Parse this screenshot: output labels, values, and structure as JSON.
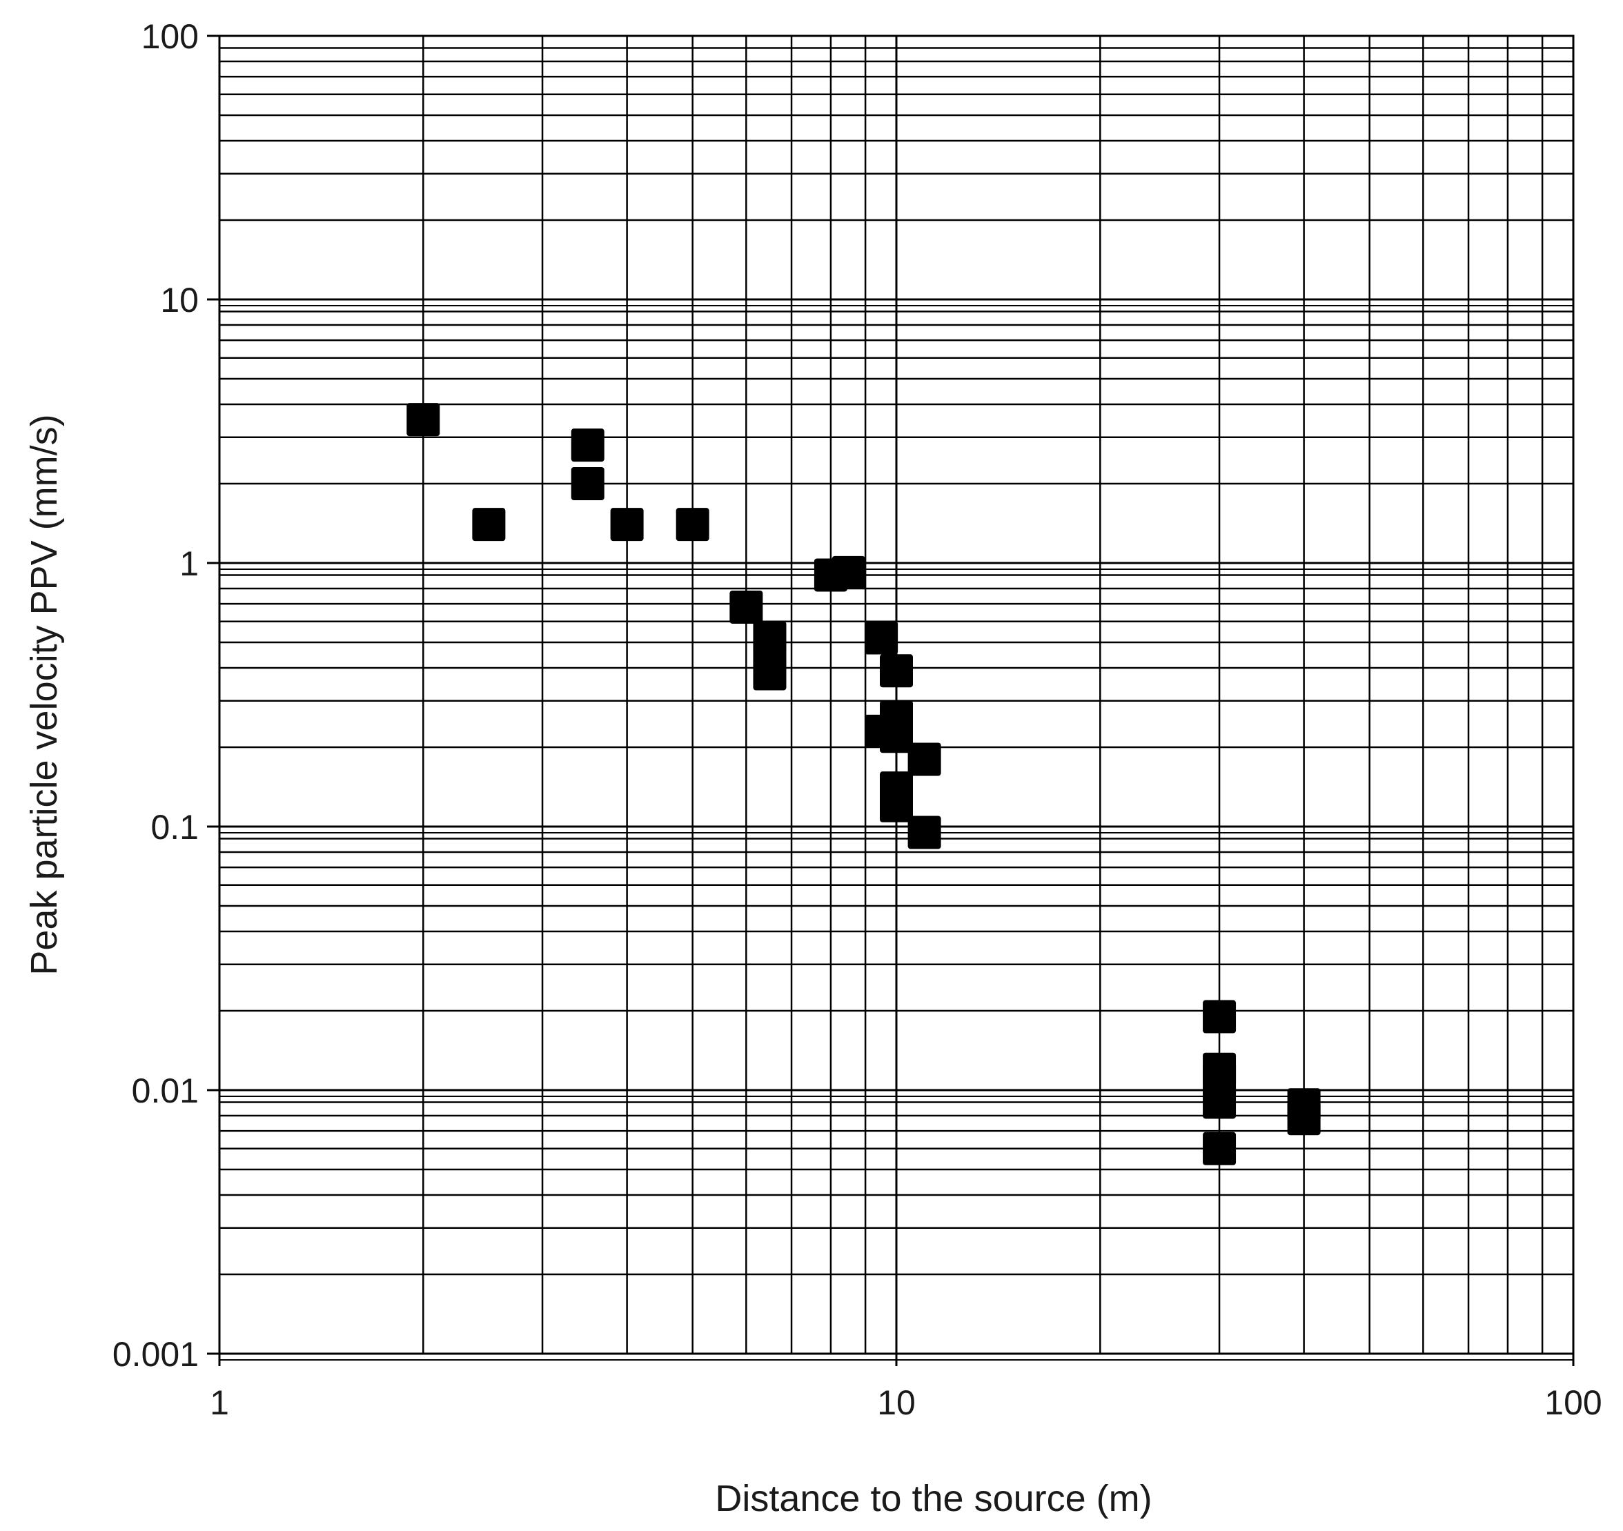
{
  "chart_data": {
    "type": "scatter",
    "title": "",
    "xlabel": "Distance to the source (m)",
    "ylabel": "Peak particle velocity PPV  (mm/s)",
    "x_scale": "log",
    "y_scale": "log",
    "xlim": [
      1,
      100
    ],
    "ylim": [
      0.001,
      100
    ],
    "x_ticks": [
      1,
      10,
      100
    ],
    "x_tick_labels": [
      "1",
      "10",
      "100"
    ],
    "y_ticks": [
      0.001,
      0.01,
      0.1,
      1,
      10,
      100
    ],
    "y_tick_labels": [
      "0.001",
      "0.01",
      "0.1",
      "1",
      "10",
      "100"
    ],
    "grid": "major and minor",
    "legend": "none",
    "marker": "square",
    "marker_color": "#000000",
    "series": [
      {
        "points": [
          {
            "x": 2.0,
            "y": 3.5
          },
          {
            "x": 2.5,
            "y": 1.4
          },
          {
            "x": 3.5,
            "y": 2.8
          },
          {
            "x": 3.5,
            "y": 2.0
          },
          {
            "x": 4.0,
            "y": 1.4
          },
          {
            "x": 5.0,
            "y": 1.4
          },
          {
            "x": 6.0,
            "y": 0.68
          },
          {
            "x": 6.5,
            "y": 0.52
          },
          {
            "x": 6.5,
            "y": 0.45
          },
          {
            "x": 6.5,
            "y": 0.38
          },
          {
            "x": 8.0,
            "y": 0.9
          },
          {
            "x": 8.5,
            "y": 0.92
          },
          {
            "x": 9.5,
            "y": 0.52
          },
          {
            "x": 10.0,
            "y": 0.39
          },
          {
            "x": 10.0,
            "y": 0.26
          },
          {
            "x": 9.5,
            "y": 0.23
          },
          {
            "x": 10.0,
            "y": 0.22
          },
          {
            "x": 11.0,
            "y": 0.18
          },
          {
            "x": 10.0,
            "y": 0.14
          },
          {
            "x": 10.0,
            "y": 0.12
          },
          {
            "x": 11.0,
            "y": 0.095
          },
          {
            "x": 30.0,
            "y": 0.019
          },
          {
            "x": 30.0,
            "y": 0.012
          },
          {
            "x": 30.0,
            "y": 0.011
          },
          {
            "x": 30.0,
            "y": 0.009
          },
          {
            "x": 30.0,
            "y": 0.006
          },
          {
            "x": 40.0,
            "y": 0.0088
          },
          {
            "x": 40.0,
            "y": 0.0078
          }
        ]
      }
    ]
  }
}
